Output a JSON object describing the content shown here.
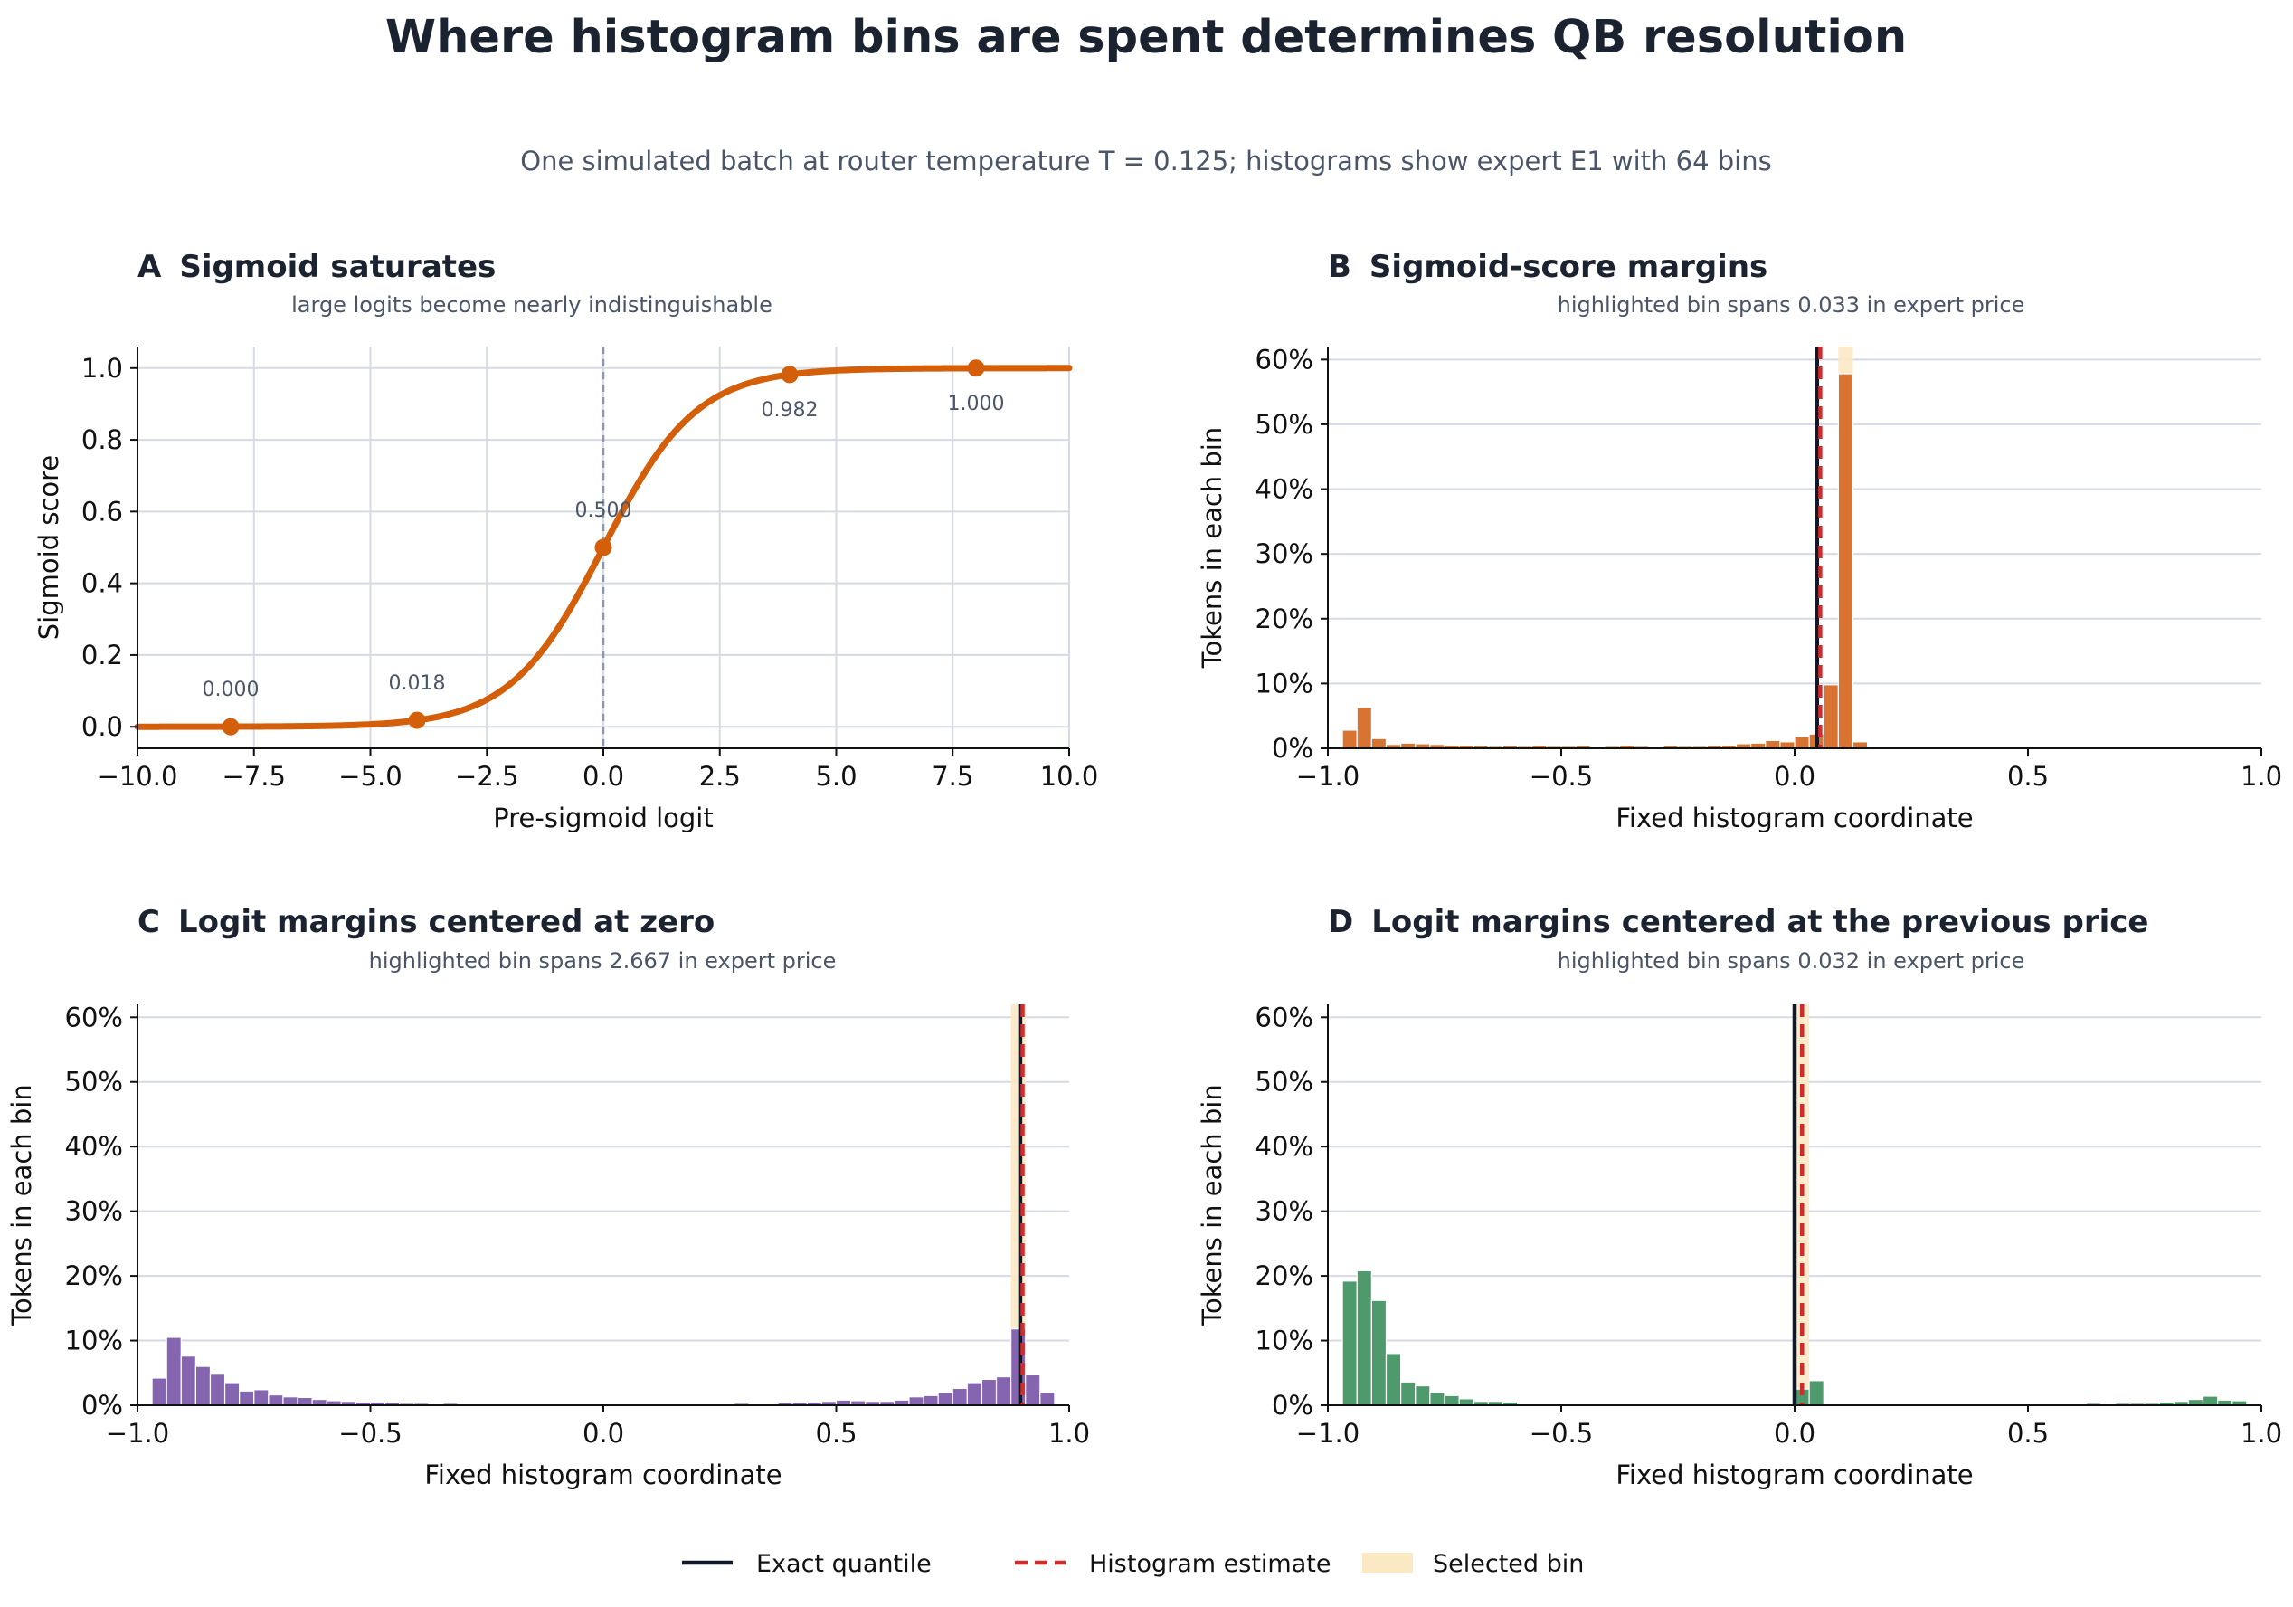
{
  "title": "Where histogram bins are spent determines QB resolution",
  "subtitle": "One simulated batch at router temperature T = 0.125; histograms show expert E1 with 64 bins",
  "colors": {
    "sigmoid": "#d35f0a",
    "panel_b": "#d97332",
    "panel_c": "#8665b0",
    "panel_d": "#4f9a6c",
    "exact": "#111827",
    "estimate": "#d12b2b",
    "selected_bin": "#fbe9c4",
    "grid": "#d5dae4"
  },
  "legend": {
    "exact": "Exact quantile",
    "estimate": "Histogram estimate",
    "selected": "Selected bin"
  },
  "panels": {
    "a": {
      "letter": "A",
      "title": "Sigmoid saturates",
      "subtitle": "large logits become nearly indistinguishable"
    },
    "b": {
      "letter": "B",
      "title": "Sigmoid-score margins",
      "subtitle": "highlighted bin spans 0.033 in expert price"
    },
    "c": {
      "letter": "C",
      "title": "Logit margins centered at zero",
      "subtitle": "highlighted bin spans 2.667 in expert price"
    },
    "d": {
      "letter": "D",
      "title": "Logit margins centered at the previous price",
      "subtitle": "highlighted bin spans 0.032 in expert price"
    }
  },
  "chart_data": [
    {
      "id": "a",
      "type": "line",
      "title": "Sigmoid saturates",
      "function": "sigmoid",
      "xlabel": "Pre-sigmoid logit",
      "ylabel": "Sigmoid score",
      "xlim": [
        -10,
        10
      ],
      "ylim": [
        -0.06,
        1.06
      ],
      "xticks": [
        -10,
        -7.5,
        -5,
        -2.5,
        0,
        2.5,
        5,
        7.5,
        10
      ],
      "xtick_labels": [
        "−10.0",
        "−7.5",
        "−5.0",
        "−2.5",
        "0.0",
        "2.5",
        "5.0",
        "7.5",
        "10.0"
      ],
      "yticks": [
        0,
        0.2,
        0.4,
        0.6,
        0.8,
        1.0
      ],
      "ytick_labels": [
        "0.0",
        "0.2",
        "0.4",
        "0.6",
        "0.8",
        "1.0"
      ],
      "vline_x": 0,
      "grid": "both",
      "points": [
        {
          "x": -8,
          "y": 0.0,
          "label": "0.000"
        },
        {
          "x": -4,
          "y": 0.018,
          "label": "0.018"
        },
        {
          "x": 0,
          "y": 0.5,
          "label": "0.500"
        },
        {
          "x": 4,
          "y": 0.982,
          "label": "0.982"
        },
        {
          "x": 8,
          "y": 1.0,
          "label": "1.000"
        }
      ]
    },
    {
      "id": "b",
      "type": "bar",
      "title": "Sigmoid-score margins",
      "xlabel": "Fixed histogram coordinate",
      "ylabel": "Tokens in each bin",
      "xlim": [
        -1,
        1
      ],
      "ylim": [
        0,
        62
      ],
      "bins": 64,
      "xticks": [
        -1,
        -0.5,
        0,
        0.5,
        1
      ],
      "xtick_labels": [
        "−1.0",
        "−0.5",
        "0.0",
        "0.5",
        "1.0"
      ],
      "yticks": [
        0,
        10,
        20,
        30,
        40,
        50,
        60
      ],
      "ytick_labels": [
        "0%",
        "10%",
        "20%",
        "30%",
        "40%",
        "50%",
        "60%"
      ],
      "grid": "y",
      "values": [
        0,
        2.8,
        6.3,
        1.5,
        0.6,
        0.8,
        0.7,
        0.6,
        0.5,
        0.5,
        0.4,
        0.3,
        0.4,
        0.3,
        0.5,
        0.3,
        0.3,
        0.4,
        0.2,
        0.3,
        0.5,
        0.3,
        0.2,
        0.4,
        0.3,
        0.3,
        0.4,
        0.5,
        0.7,
        0.8,
        1.2,
        1.0,
        1.8,
        2.2,
        9.8,
        57.8,
        1.0,
        0,
        0,
        0,
        0,
        0,
        0,
        0,
        0,
        0,
        0,
        0,
        0,
        0,
        0,
        0,
        0,
        0,
        0,
        0,
        0,
        0,
        0,
        0,
        0,
        0,
        0,
        0
      ],
      "selected_bin": 35,
      "exact_quantile": 0.048,
      "histogram_estimate": 0.055
    },
    {
      "id": "c",
      "type": "bar",
      "title": "Logit margins centered at zero",
      "xlabel": "Fixed histogram coordinate",
      "ylabel": "Tokens in each bin",
      "xlim": [
        -1,
        1
      ],
      "ylim": [
        0,
        62
      ],
      "bins": 64,
      "xticks": [
        -1,
        -0.5,
        0,
        0.5,
        1
      ],
      "xtick_labels": [
        "−1.0",
        "−0.5",
        "0.0",
        "0.5",
        "1.0"
      ],
      "yticks": [
        0,
        10,
        20,
        30,
        40,
        50,
        60
      ],
      "ytick_labels": [
        "0%",
        "10%",
        "20%",
        "30%",
        "40%",
        "50%",
        "60%"
      ],
      "grid": "y",
      "values": [
        0,
        4.2,
        10.5,
        7.6,
        6.0,
        4.8,
        3.5,
        2.2,
        2.4,
        1.6,
        1.3,
        1.2,
        0.9,
        0.7,
        0.6,
        0.5,
        0.5,
        0.4,
        0.3,
        0.3,
        0.2,
        0.3,
        0.2,
        0.1,
        0.2,
        0.1,
        0.2,
        0.1,
        0.1,
        0.1,
        0.1,
        0.1,
        0.1,
        0.1,
        0.1,
        0.1,
        0.2,
        0.1,
        0.1,
        0.2,
        0.2,
        0.3,
        0.2,
        0.2,
        0.4,
        0.4,
        0.5,
        0.6,
        0.8,
        0.7,
        0.6,
        0.6,
        0.8,
        1.3,
        1.5,
        2.0,
        2.6,
        3.5,
        4.0,
        4.4,
        11.8,
        4.7,
        2.0,
        0
      ],
      "selected_bin": 60,
      "exact_quantile": 0.895,
      "histogram_estimate": 0.9
    },
    {
      "id": "d",
      "type": "bar",
      "title": "Logit margins centered at the previous price",
      "xlabel": "Fixed histogram coordinate",
      "ylabel": "Tokens in each bin",
      "xlim": [
        -1,
        1
      ],
      "ylim": [
        0,
        62
      ],
      "bins": 64,
      "xticks": [
        -1,
        -0.5,
        0,
        0.5,
        1
      ],
      "xtick_labels": [
        "−1.0",
        "−0.5",
        "0.0",
        "0.5",
        "1.0"
      ],
      "yticks": [
        0,
        10,
        20,
        30,
        40,
        50,
        60
      ],
      "ytick_labels": [
        "0%",
        "10%",
        "20%",
        "30%",
        "40%",
        "50%",
        "60%"
      ],
      "grid": "y",
      "values": [
        0,
        19.2,
        20.8,
        16.2,
        8.0,
        3.6,
        3.0,
        2.0,
        1.5,
        1.0,
        0.6,
        0.6,
        0.5,
        0,
        0,
        0,
        0,
        0,
        0,
        0,
        0,
        0,
        0,
        0,
        0,
        0,
        0,
        0,
        0,
        0,
        0,
        0,
        2.5,
        3.8,
        0,
        0,
        0,
        0,
        0,
        0,
        0,
        0,
        0,
        0,
        0,
        0,
        0,
        0,
        0,
        0,
        0.1,
        0.2,
        0.3,
        0.2,
        0.3,
        0.3,
        0.3,
        0.5,
        0.6,
        0.9,
        1.4,
        0.8,
        0.7,
        0
      ],
      "selected_bin": 32,
      "exact_quantile": 0.0,
      "histogram_estimate": 0.016
    }
  ]
}
